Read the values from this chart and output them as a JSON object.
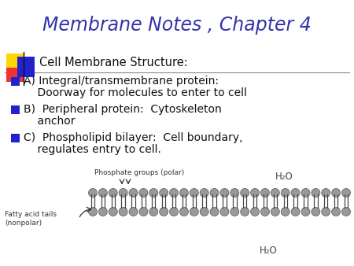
{
  "title": "Membrane Notes , Chapter 4",
  "title_color": "#3333AA",
  "title_fontsize": 17,
  "bg_color": "#FFFFFF",
  "bullet_color": "#2222CC",
  "text_color": "#111111",
  "header_text": "Cell Membrane Structure:",
  "bullet_A_line1": "A) Integral/transmembrane protein:",
  "bullet_A_line2": "    Doorway for molecules to enter to cell",
  "bullet_B_line1": "B)  Peripheral protein:  Cytoskeleton",
  "bullet_B_line2": "    anchor",
  "bullet_C_line1": "C)  Phospholipid bilayer:  Cell boundary,",
  "bullet_C_line2": "    regulates entry to cell.",
  "label_phosphate": "Phosphate groups (polar)",
  "label_fatty": "Fatty acid tails\n(nonpolar)",
  "label_h2o_top": "H₂O",
  "label_h2o_bot": "H₂O",
  "square_yellow": "#FFD700",
  "square_red": "#EE3333",
  "square_blue": "#2222CC",
  "n_lipids": 26,
  "font_family": "DejaVu Sans"
}
